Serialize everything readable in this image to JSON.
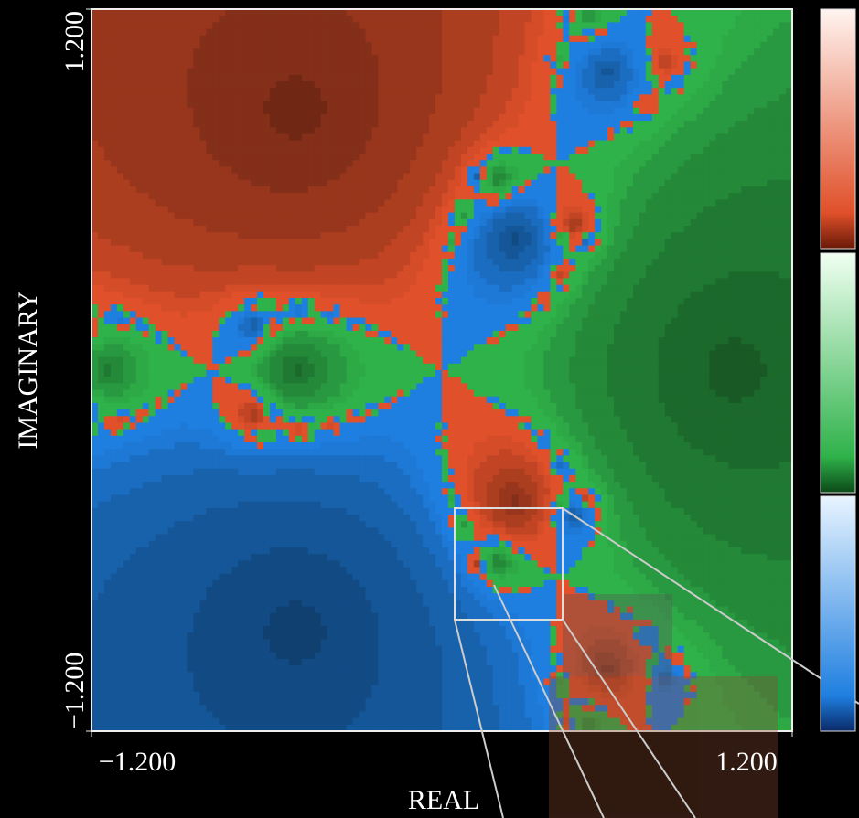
{
  "chart_data": {
    "type": "fractal",
    "xlabel": "REAL",
    "ylabel": "IMAGINARY",
    "xlim": [
      -1.2,
      1.2
    ],
    "ylim": [
      -1.2,
      1.2
    ],
    "xticks": [
      {
        "value": -1.2,
        "label": "−1.200"
      },
      {
        "value": 1.2,
        "label": "1.200"
      }
    ],
    "yticks": [
      {
        "value": -1.2,
        "label": "−1.200"
      },
      {
        "value": 1.2,
        "label": "1.200"
      }
    ],
    "colors": [
      "#2fb24a",
      "#e0502a",
      "#1f7fe0"
    ]
  }
}
